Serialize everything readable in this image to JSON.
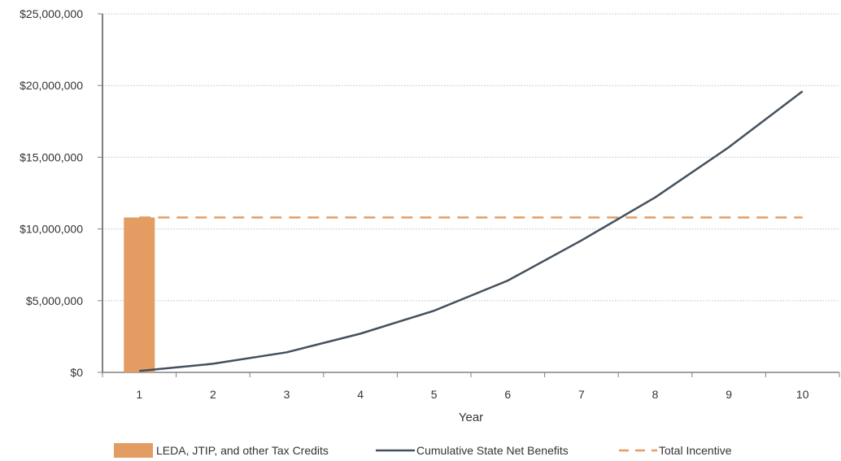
{
  "chart_data": {
    "type": "bar+line",
    "title": "",
    "xlabel": "Year",
    "ylabel": "",
    "categories": [
      "1",
      "2",
      "3",
      "4",
      "5",
      "6",
      "7",
      "8",
      "9",
      "10"
    ],
    "ylim": [
      0,
      25000000
    ],
    "y_ticks": [
      0,
      5000000,
      10000000,
      15000000,
      20000000,
      25000000
    ],
    "y_tick_labels": [
      "$0",
      "$5,000,000",
      "$10,000,000",
      "$15,000,000",
      "$20,000,000",
      "$25,000,000"
    ],
    "grid": "horizontal dotted",
    "legend_position": "bottom",
    "series": [
      {
        "name": "LEDA, JTIP, and other Tax Credits",
        "kind": "bar",
        "color": "#E39D63",
        "values": [
          10800000,
          null,
          null,
          null,
          null,
          null,
          null,
          null,
          null,
          null
        ]
      },
      {
        "name": "Cumulative State Net Benefits",
        "kind": "line",
        "color": "#44505C",
        "values": [
          100000,
          600000,
          1400000,
          2700000,
          4300000,
          6400000,
          9200000,
          12200000,
          15700000,
          19600000
        ]
      },
      {
        "name": "Total Incentive",
        "kind": "dashed-line",
        "color": "#E39D63",
        "values": [
          10800000,
          10800000,
          10800000,
          10800000,
          10800000,
          10800000,
          10800000,
          10800000,
          10800000,
          10800000
        ]
      }
    ]
  }
}
